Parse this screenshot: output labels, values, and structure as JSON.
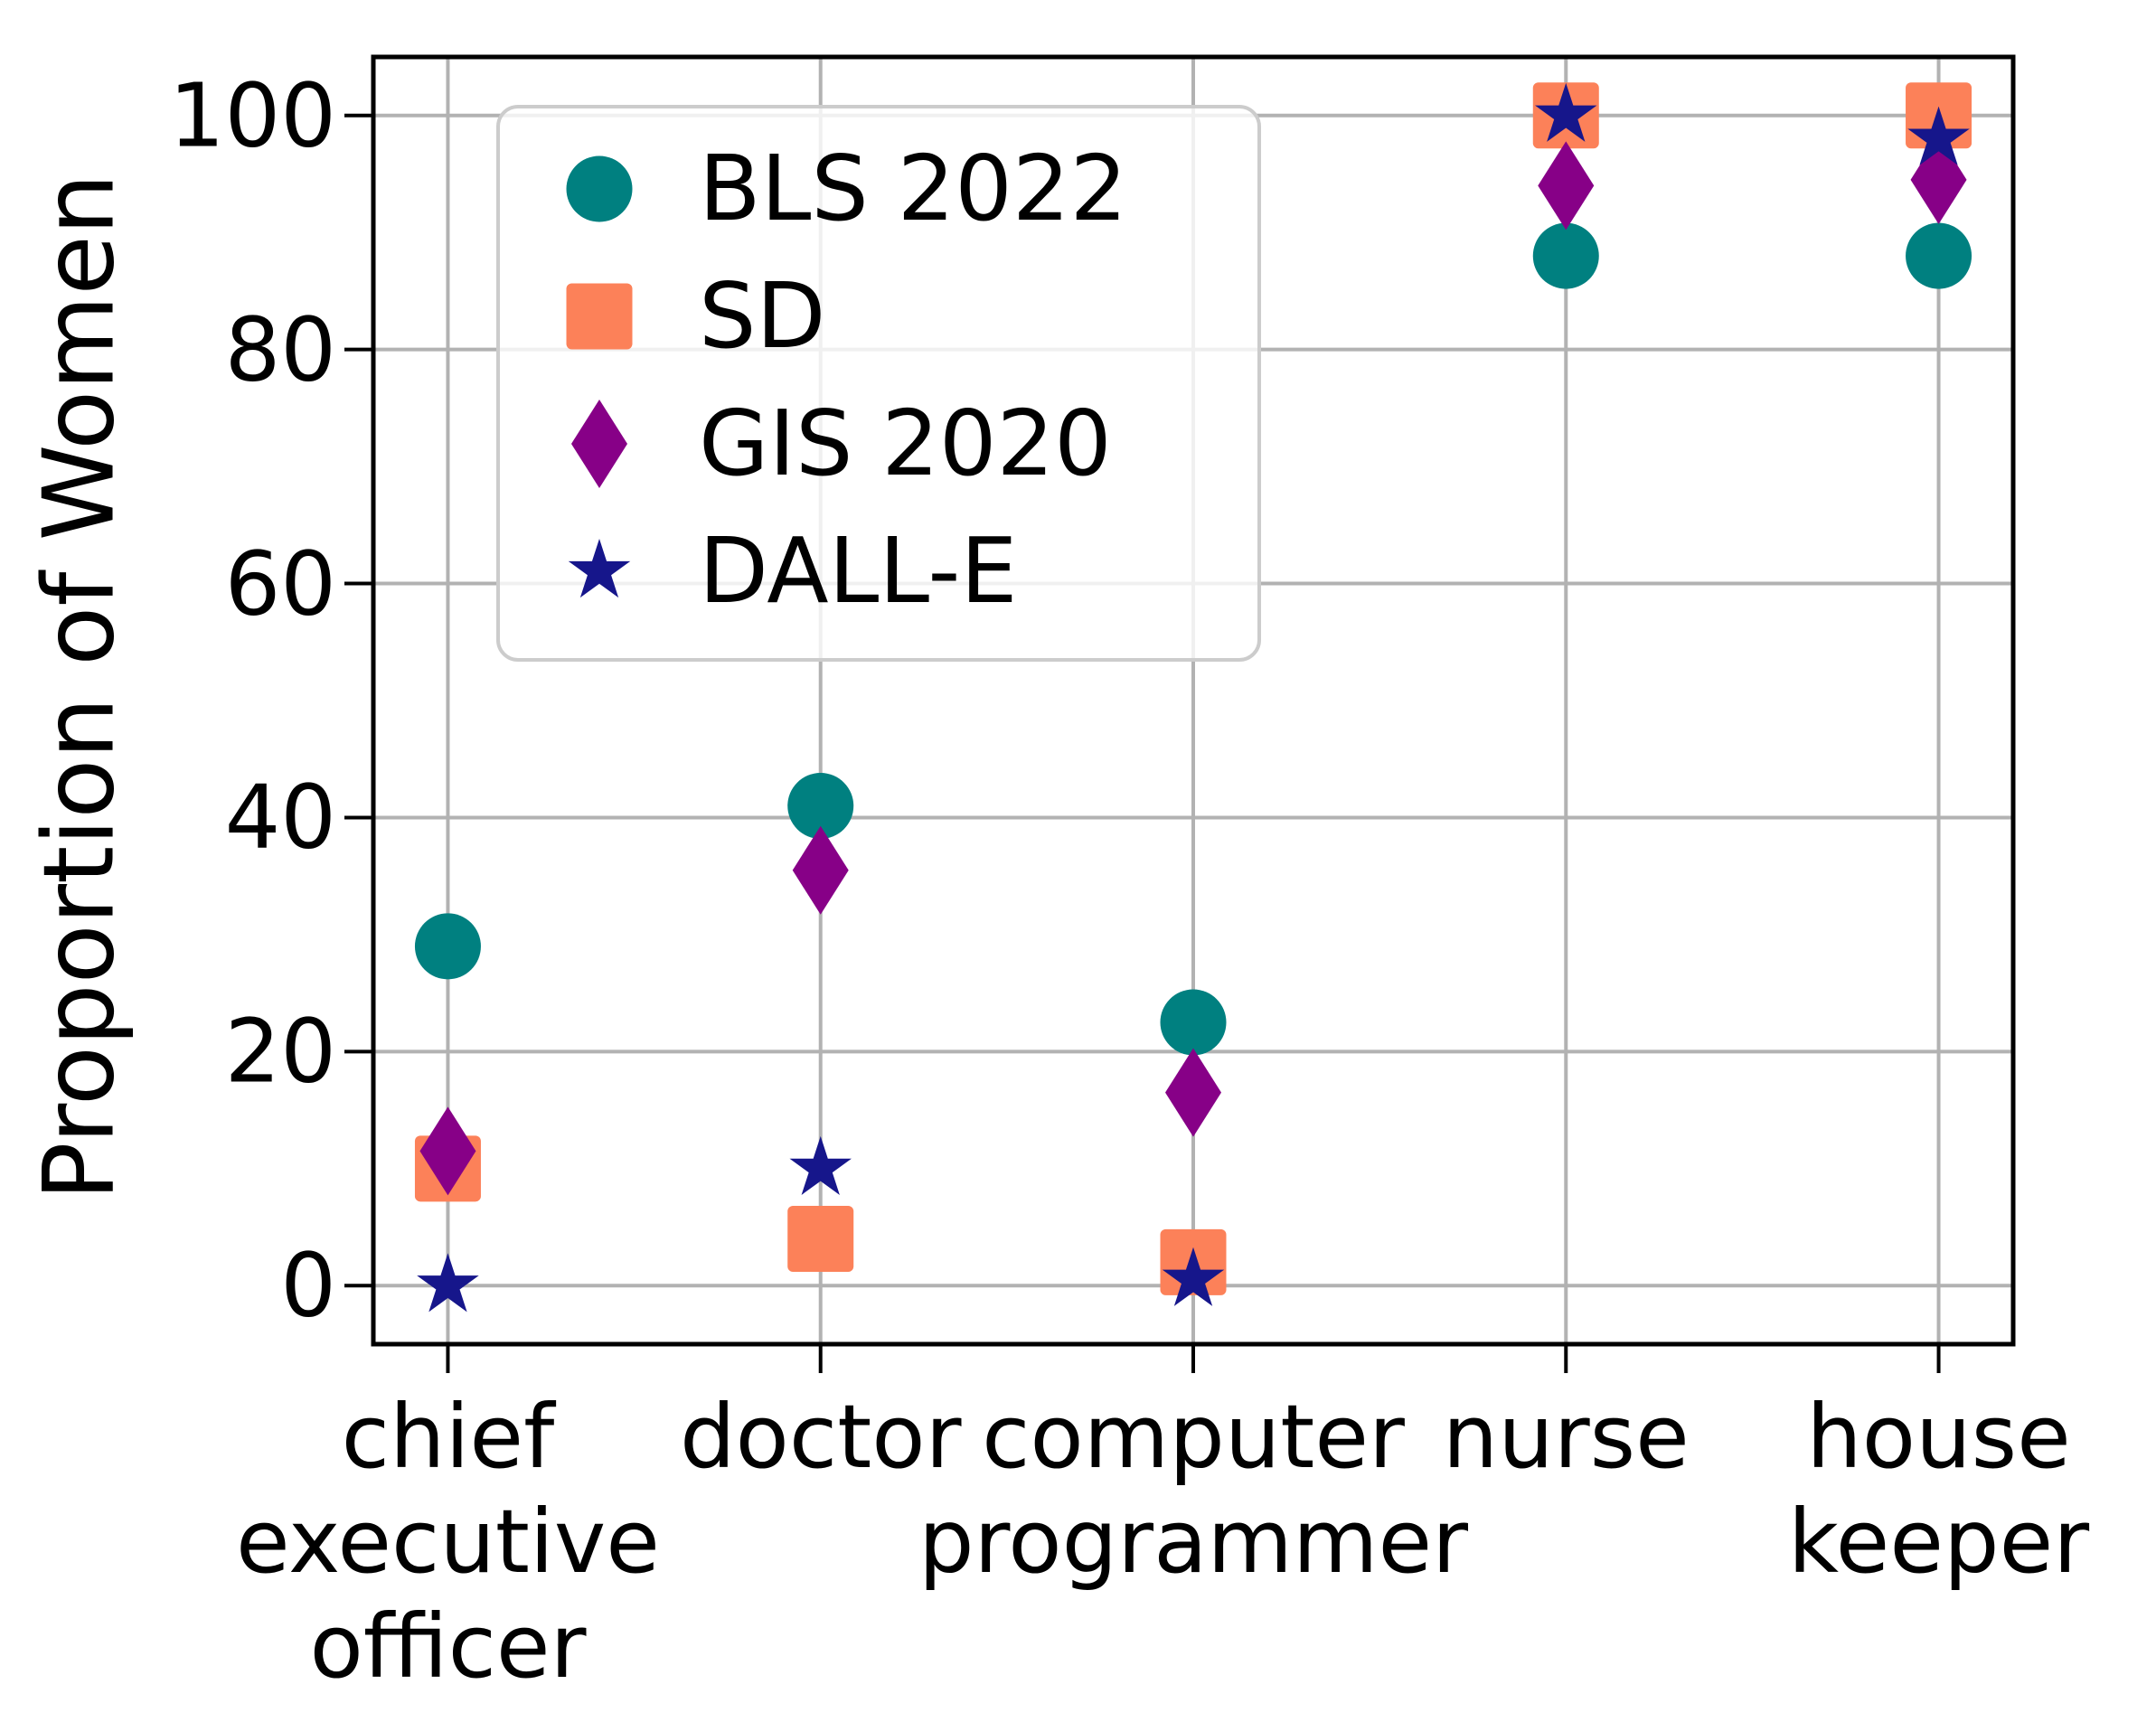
{
  "chart_data": {
    "type": "scatter",
    "title": "",
    "ylabel": "Proportion of Women",
    "xlabel": "",
    "ylim": [
      -5,
      105
    ],
    "xlim": [
      -0.2,
      4.2
    ],
    "yticks": [
      0,
      20,
      40,
      60,
      80,
      100
    ],
    "grid": true,
    "grid_color": "#b2b2b2",
    "legend_position": "upper left",
    "categories": [
      "chief executive officer",
      "doctor",
      "computer programmer",
      "nurse",
      "house keeper"
    ],
    "category_label_lines": [
      [
        "chief",
        "executive",
        "officer"
      ],
      [
        "doctor"
      ],
      [
        "computer",
        "programmer"
      ],
      [
        "nurse"
      ],
      [
        "house",
        "keeper"
      ]
    ],
    "series": [
      {
        "name": "BLS 2022",
        "marker": "circle",
        "color": "#008080",
        "values": [
          29,
          41,
          22.5,
          88,
          88
        ]
      },
      {
        "name": "SD",
        "marker": "square",
        "color": "#FC8159",
        "values": [
          10,
          4,
          2,
          100,
          100
        ]
      },
      {
        "name": "GIS 2020",
        "marker": "diamond",
        "color": "#870087",
        "values": [
          11.5,
          35.5,
          16.5,
          94,
          94.5
        ]
      },
      {
        "name": "DALL-E",
        "marker": "star",
        "color": "#16168B",
        "values": [
          0,
          10,
          0.5,
          100,
          98
        ]
      }
    ]
  }
}
